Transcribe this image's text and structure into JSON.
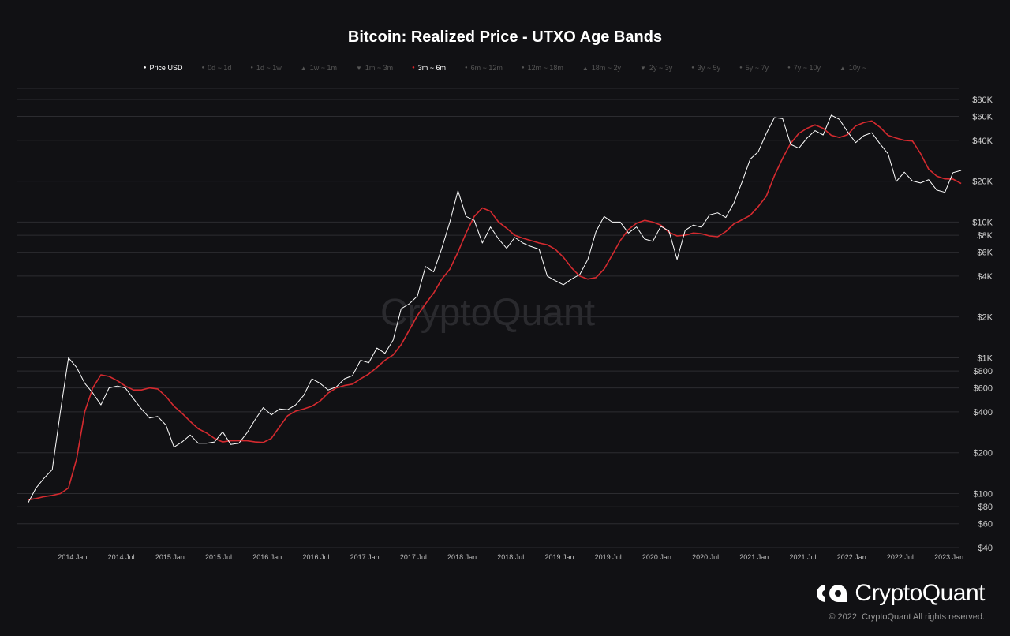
{
  "chart_data": {
    "type": "line",
    "title": "Bitcoin: Realized Price - UTXO Age Bands",
    "watermark": "CryptoQuant",
    "y_scale": "log",
    "ylim": [
      40,
      90000
    ],
    "y_ticks": [
      {
        "value": 40,
        "label": "$40"
      },
      {
        "value": 60,
        "label": "$60"
      },
      {
        "value": 80,
        "label": "$80"
      },
      {
        "value": 100,
        "label": "$100"
      },
      {
        "value": 200,
        "label": "$200"
      },
      {
        "value": 400,
        "label": "$400"
      },
      {
        "value": 600,
        "label": "$600"
      },
      {
        "value": 800,
        "label": "$800"
      },
      {
        "value": 1000,
        "label": "$1K"
      },
      {
        "value": 2000,
        "label": "$2K"
      },
      {
        "value": 4000,
        "label": "$4K"
      },
      {
        "value": 6000,
        "label": "$6K"
      },
      {
        "value": 8000,
        "label": "$8K"
      },
      {
        "value": 10000,
        "label": "$10K"
      },
      {
        "value": 20000,
        "label": "$20K"
      },
      {
        "value": 40000,
        "label": "$40K"
      },
      {
        "value": 60000,
        "label": "$60K"
      },
      {
        "value": 80000,
        "label": "$80K"
      }
    ],
    "x_range": [
      "2013-07",
      "2023-02"
    ],
    "x_ticks": [
      "2014 Jan",
      "2014 Jul",
      "2015 Jan",
      "2015 Jul",
      "2016 Jan",
      "2016 Jul",
      "2017 Jan",
      "2017 Jul",
      "2018 Jan",
      "2018 Jul",
      "2019 Jan",
      "2019 Jul",
      "2020 Jan",
      "2020 Jul",
      "2021 Jan",
      "2021 Jul",
      "2022 Jan",
      "2022 Jul",
      "2023 Jan"
    ],
    "legend_placement": "top",
    "legend": [
      {
        "name": "Price USD",
        "marker": "dot",
        "color": "#ffffff",
        "active": true
      },
      {
        "name": "0d ~ 1d",
        "marker": "dot",
        "active": false
      },
      {
        "name": "1d ~ 1w",
        "marker": "dot",
        "active": false
      },
      {
        "name": "1w ~ 1m",
        "marker": "triangle-up",
        "active": false
      },
      {
        "name": "1m ~ 3m",
        "marker": "triangle-down",
        "active": false
      },
      {
        "name": "3m ~ 6m",
        "marker": "dot",
        "color": "#e0242b",
        "active": true
      },
      {
        "name": "6m ~ 12m",
        "marker": "dot",
        "active": false
      },
      {
        "name": "12m ~ 18m",
        "marker": "dot",
        "active": false
      },
      {
        "name": "18m ~ 2y",
        "marker": "triangle-up",
        "active": false
      },
      {
        "name": "2y ~ 3y",
        "marker": "triangle-down",
        "active": false
      },
      {
        "name": "3y ~ 5y",
        "marker": "dot",
        "active": false
      },
      {
        "name": "5y ~ 7y",
        "marker": "dot",
        "active": false
      },
      {
        "name": "7y ~ 10y",
        "marker": "dot",
        "active": false
      },
      {
        "name": "10y ~",
        "marker": "triangle-up",
        "active": false
      }
    ],
    "series": [
      {
        "name": "Price USD",
        "color": "#ffffff",
        "points": [
          [
            "2013-07",
            85
          ],
          [
            "2013-08",
            110
          ],
          [
            "2013-09",
            130
          ],
          [
            "2013-10",
            150
          ],
          [
            "2013-11",
            400
          ],
          [
            "2013-12",
            1000
          ],
          [
            "2014-01",
            850
          ],
          [
            "2014-02",
            650
          ],
          [
            "2014-03",
            550
          ],
          [
            "2014-04",
            450
          ],
          [
            "2014-05",
            600
          ],
          [
            "2014-06",
            620
          ],
          [
            "2014-07",
            600
          ],
          [
            "2014-08",
            500
          ],
          [
            "2014-09",
            420
          ],
          [
            "2014-10",
            360
          ],
          [
            "2014-11",
            370
          ],
          [
            "2014-12",
            320
          ],
          [
            "2015-01",
            220
          ],
          [
            "2015-02",
            240
          ],
          [
            "2015-03",
            270
          ],
          [
            "2015-04",
            235
          ],
          [
            "2015-05",
            235
          ],
          [
            "2015-06",
            240
          ],
          [
            "2015-07",
            285
          ],
          [
            "2015-08",
            230
          ],
          [
            "2015-09",
            235
          ],
          [
            "2015-10",
            280
          ],
          [
            "2015-11",
            350
          ],
          [
            "2015-12",
            430
          ],
          [
            "2016-01",
            380
          ],
          [
            "2016-02",
            420
          ],
          [
            "2016-03",
            415
          ],
          [
            "2016-04",
            450
          ],
          [
            "2016-05",
            530
          ],
          [
            "2016-06",
            700
          ],
          [
            "2016-07",
            650
          ],
          [
            "2016-08",
            580
          ],
          [
            "2016-09",
            610
          ],
          [
            "2016-10",
            700
          ],
          [
            "2016-11",
            740
          ],
          [
            "2016-12",
            960
          ],
          [
            "2017-01",
            920
          ],
          [
            "2017-02",
            1180
          ],
          [
            "2017-03",
            1080
          ],
          [
            "2017-04",
            1350
          ],
          [
            "2017-05",
            2300
          ],
          [
            "2017-06",
            2500
          ],
          [
            "2017-07",
            2850
          ],
          [
            "2017-08",
            4700
          ],
          [
            "2017-09",
            4300
          ],
          [
            "2017-10",
            6400
          ],
          [
            "2017-11",
            10000
          ],
          [
            "2017-12",
            17000
          ],
          [
            "2018-01",
            11000
          ],
          [
            "2018-02",
            10300
          ],
          [
            "2018-03",
            7000
          ],
          [
            "2018-04",
            9200
          ],
          [
            "2018-05",
            7500
          ],
          [
            "2018-06",
            6400
          ],
          [
            "2018-07",
            7700
          ],
          [
            "2018-08",
            7000
          ],
          [
            "2018-09",
            6600
          ],
          [
            "2018-10",
            6300
          ],
          [
            "2018-11",
            4000
          ],
          [
            "2018-12",
            3700
          ],
          [
            "2019-01",
            3450
          ],
          [
            "2019-02",
            3800
          ],
          [
            "2019-03",
            4100
          ],
          [
            "2019-04",
            5300
          ],
          [
            "2019-05",
            8500
          ],
          [
            "2019-06",
            11000
          ],
          [
            "2019-07",
            10000
          ],
          [
            "2019-08",
            10000
          ],
          [
            "2019-09",
            8300
          ],
          [
            "2019-10",
            9200
          ],
          [
            "2019-11",
            7500
          ],
          [
            "2019-12",
            7200
          ],
          [
            "2020-01",
            9300
          ],
          [
            "2020-02",
            8600
          ],
          [
            "2020-03",
            5300
          ],
          [
            "2020-04",
            8700
          ],
          [
            "2020-05",
            9500
          ],
          [
            "2020-06",
            9150
          ],
          [
            "2020-07",
            11300
          ],
          [
            "2020-08",
            11700
          ],
          [
            "2020-09",
            10800
          ],
          [
            "2020-10",
            13800
          ],
          [
            "2020-11",
            19700
          ],
          [
            "2020-12",
            29000
          ],
          [
            "2021-01",
            33000
          ],
          [
            "2021-02",
            45000
          ],
          [
            "2021-03",
            58800
          ],
          [
            "2021-04",
            57700
          ],
          [
            "2021-05",
            37300
          ],
          [
            "2021-06",
            35000
          ],
          [
            "2021-07",
            41500
          ],
          [
            "2021-08",
            47100
          ],
          [
            "2021-09",
            43800
          ],
          [
            "2021-10",
            61300
          ],
          [
            "2021-11",
            57000
          ],
          [
            "2021-12",
            46300
          ],
          [
            "2022-01",
            38500
          ],
          [
            "2022-02",
            43200
          ],
          [
            "2022-03",
            45500
          ],
          [
            "2022-04",
            37700
          ],
          [
            "2022-05",
            31800
          ],
          [
            "2022-06",
            19900
          ],
          [
            "2022-07",
            23300
          ],
          [
            "2022-08",
            20050
          ],
          [
            "2022-09",
            19400
          ],
          [
            "2022-10",
            20500
          ],
          [
            "2022-11",
            17200
          ],
          [
            "2022-12",
            16550
          ],
          [
            "2023-01",
            23100
          ],
          [
            "2023-02",
            24000
          ]
        ]
      },
      {
        "name": "3m ~ 6m",
        "color": "#d42a2f",
        "points": [
          [
            "2013-07",
            90
          ],
          [
            "2013-08",
            92
          ],
          [
            "2013-09",
            95
          ],
          [
            "2013-10",
            97
          ],
          [
            "2013-11",
            100
          ],
          [
            "2013-12",
            110
          ],
          [
            "2014-01",
            180
          ],
          [
            "2014-02",
            400
          ],
          [
            "2014-03",
            600
          ],
          [
            "2014-04",
            750
          ],
          [
            "2014-05",
            730
          ],
          [
            "2014-06",
            680
          ],
          [
            "2014-07",
            620
          ],
          [
            "2014-08",
            580
          ],
          [
            "2014-09",
            580
          ],
          [
            "2014-10",
            600
          ],
          [
            "2014-11",
            590
          ],
          [
            "2014-12",
            520
          ],
          [
            "2015-01",
            440
          ],
          [
            "2015-02",
            390
          ],
          [
            "2015-03",
            340
          ],
          [
            "2015-04",
            300
          ],
          [
            "2015-05",
            280
          ],
          [
            "2015-06",
            255
          ],
          [
            "2015-07",
            240
          ],
          [
            "2015-08",
            245
          ],
          [
            "2015-09",
            245
          ],
          [
            "2015-10",
            245
          ],
          [
            "2015-11",
            240
          ],
          [
            "2015-12",
            238
          ],
          [
            "2016-01",
            255
          ],
          [
            "2016-02",
            310
          ],
          [
            "2016-03",
            375
          ],
          [
            "2016-04",
            405
          ],
          [
            "2016-05",
            420
          ],
          [
            "2016-06",
            440
          ],
          [
            "2016-07",
            480
          ],
          [
            "2016-08",
            550
          ],
          [
            "2016-09",
            600
          ],
          [
            "2016-10",
            625
          ],
          [
            "2016-11",
            640
          ],
          [
            "2016-12",
            700
          ],
          [
            "2017-01",
            760
          ],
          [
            "2017-02",
            850
          ],
          [
            "2017-03",
            960
          ],
          [
            "2017-04",
            1050
          ],
          [
            "2017-05",
            1250
          ],
          [
            "2017-06",
            1600
          ],
          [
            "2017-07",
            2050
          ],
          [
            "2017-08",
            2500
          ],
          [
            "2017-09",
            3000
          ],
          [
            "2017-10",
            3800
          ],
          [
            "2017-11",
            4500
          ],
          [
            "2017-12",
            6000
          ],
          [
            "2018-01",
            8300
          ],
          [
            "2018-02",
            11000
          ],
          [
            "2018-03",
            12700
          ],
          [
            "2018-04",
            12000
          ],
          [
            "2018-05",
            10000
          ],
          [
            "2018-06",
            9000
          ],
          [
            "2018-07",
            8000
          ],
          [
            "2018-08",
            7600
          ],
          [
            "2018-09",
            7300
          ],
          [
            "2018-10",
            7000
          ],
          [
            "2018-11",
            6800
          ],
          [
            "2018-12",
            6300
          ],
          [
            "2019-01",
            5500
          ],
          [
            "2019-02",
            4600
          ],
          [
            "2019-03",
            4000
          ],
          [
            "2019-04",
            3800
          ],
          [
            "2019-05",
            3900
          ],
          [
            "2019-06",
            4500
          ],
          [
            "2019-07",
            5700
          ],
          [
            "2019-08",
            7300
          ],
          [
            "2019-09",
            8800
          ],
          [
            "2019-10",
            9800
          ],
          [
            "2019-11",
            10300
          ],
          [
            "2019-12",
            10000
          ],
          [
            "2020-01",
            9500
          ],
          [
            "2020-02",
            8400
          ],
          [
            "2020-03",
            7900
          ],
          [
            "2020-04",
            8000
          ],
          [
            "2020-05",
            8300
          ],
          [
            "2020-06",
            8200
          ],
          [
            "2020-07",
            7900
          ],
          [
            "2020-08",
            7800
          ],
          [
            "2020-09",
            8500
          ],
          [
            "2020-10",
            9700
          ],
          [
            "2020-11",
            10400
          ],
          [
            "2020-12",
            11200
          ],
          [
            "2021-01",
            13000
          ],
          [
            "2021-02",
            15500
          ],
          [
            "2021-03",
            22000
          ],
          [
            "2021-04",
            29500
          ],
          [
            "2021-05",
            38000
          ],
          [
            "2021-06",
            45000
          ],
          [
            "2021-07",
            49000
          ],
          [
            "2021-08",
            52000
          ],
          [
            "2021-09",
            49000
          ],
          [
            "2021-10",
            43500
          ],
          [
            "2021-11",
            42000
          ],
          [
            "2021-12",
            44000
          ],
          [
            "2022-01",
            51000
          ],
          [
            "2022-02",
            54000
          ],
          [
            "2022-03",
            55500
          ],
          [
            "2022-04",
            50000
          ],
          [
            "2022-05",
            43500
          ],
          [
            "2022-06",
            41500
          ],
          [
            "2022-07",
            40000
          ],
          [
            "2022-08",
            39500
          ],
          [
            "2022-09",
            32000
          ],
          [
            "2022-10",
            24500
          ],
          [
            "2022-11",
            21800
          ],
          [
            "2022-12",
            20800
          ],
          [
            "2023-01",
            20700
          ],
          [
            "2023-02",
            19200
          ]
        ]
      }
    ]
  },
  "branding": {
    "logo_text": "CryptoQuant",
    "copyright": "© 2022. CryptoQuant All rights reserved."
  }
}
